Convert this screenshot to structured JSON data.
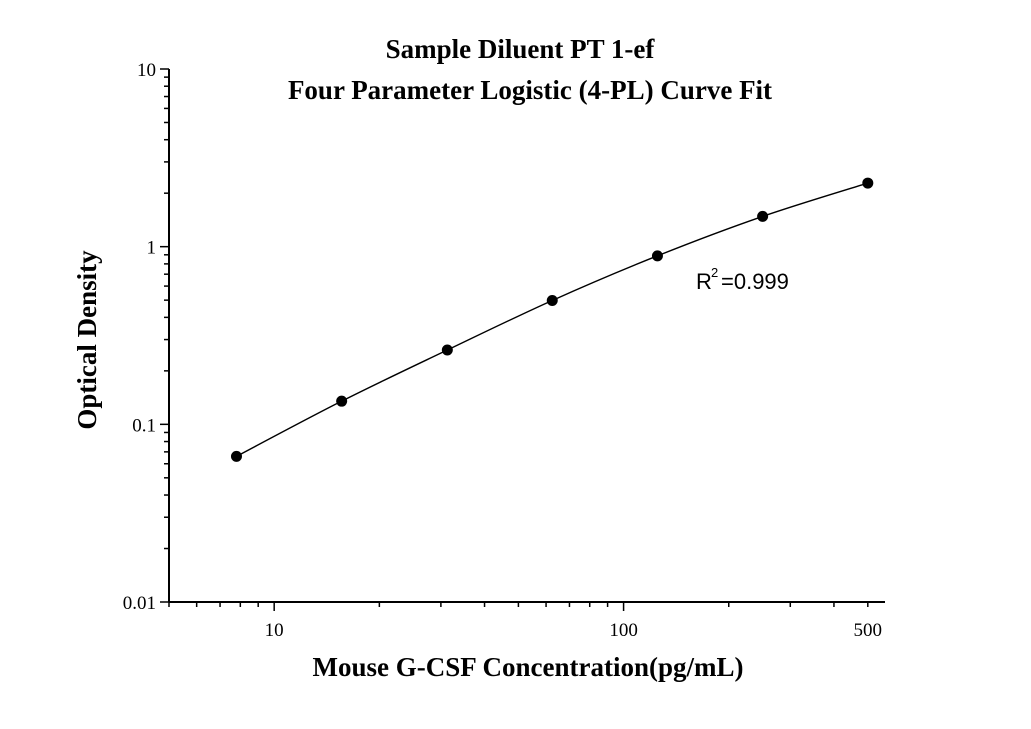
{
  "chart_data": {
    "type": "scatter",
    "title_lines": [
      "Sample Diluent PT 1-ef",
      "Four Parameter Logistic (4-PL) Curve Fit"
    ],
    "xlabel": "Mouse G-CSF Concentration(pg/mL)",
    "ylabel": "Optical Density",
    "x_scale": "log",
    "y_scale": "log",
    "xlim": [
      5,
      560
    ],
    "ylim": [
      0.01,
      10
    ],
    "x_tick_labels": [
      "10",
      "100",
      "500"
    ],
    "x_tick_values": [
      10,
      100,
      500
    ],
    "y_tick_labels": [
      "0.01",
      "0.1",
      "1",
      "10"
    ],
    "y_tick_values": [
      0.01,
      0.1,
      1,
      10
    ],
    "grid": false,
    "annotation": {
      "base": "R",
      "superscript": "2",
      "rest": "=0.999"
    },
    "marker_color": "#000000",
    "line_color": "#000000",
    "points": [
      {
        "x": 7.8,
        "y": 0.066
      },
      {
        "x": 15.6,
        "y": 0.135
      },
      {
        "x": 31.3,
        "y": 0.262
      },
      {
        "x": 62.5,
        "y": 0.498
      },
      {
        "x": 125,
        "y": 0.888
      },
      {
        "x": 250,
        "y": 1.48
      },
      {
        "x": 500,
        "y": 2.28
      }
    ]
  }
}
